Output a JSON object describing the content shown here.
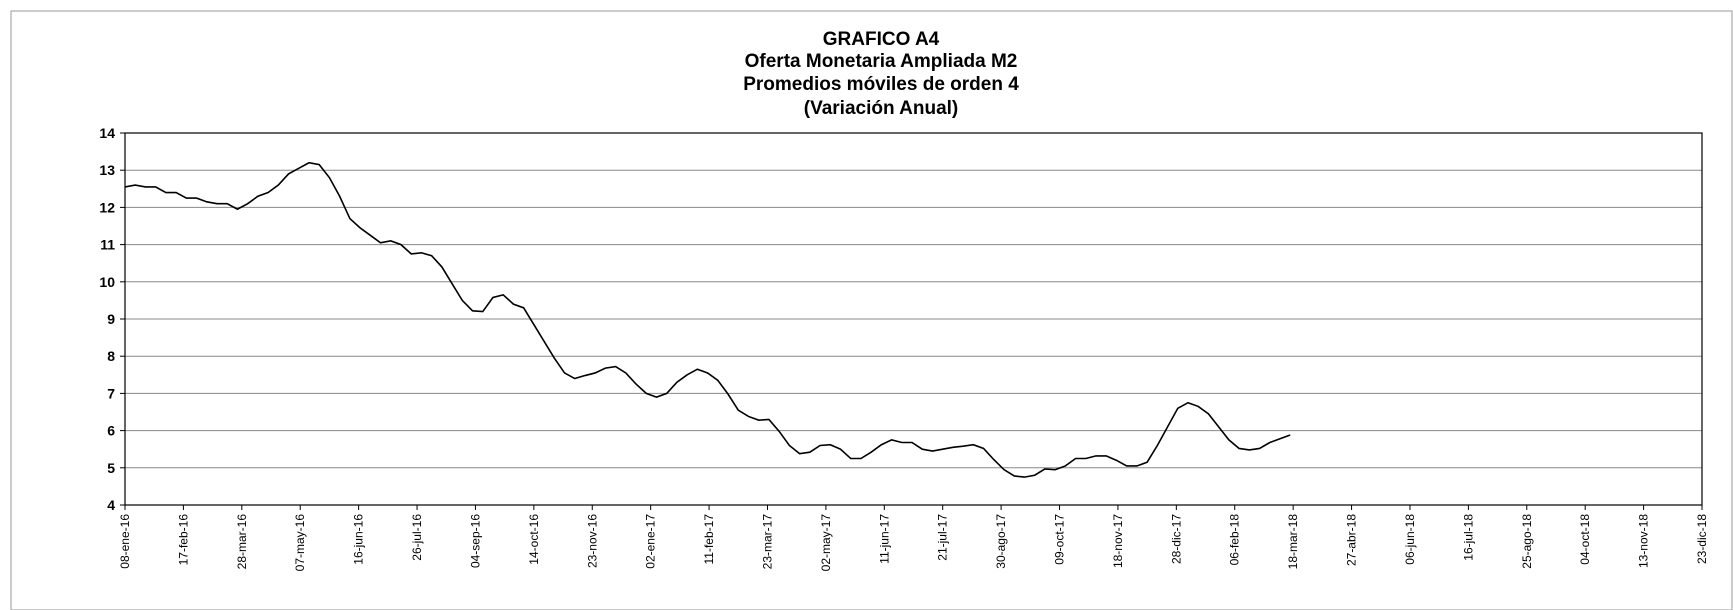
{
  "chart_data": {
    "type": "line",
    "title": [
      "GRAFICO A4",
      "Oferta Monetaria Ampliada M2",
      "Promedios móviles de orden 4",
      "(Variación Anual)"
    ],
    "x": [
      "2016-01-08",
      "2016-01-15",
      "2016-01-22",
      "2016-01-29",
      "2016-02-05",
      "2016-02-12",
      "2016-02-19",
      "2016-02-26",
      "2016-03-04",
      "2016-03-11",
      "2016-03-18",
      "2016-03-25",
      "2016-04-01",
      "2016-04-08",
      "2016-04-15",
      "2016-04-22",
      "2016-04-29",
      "2016-05-06",
      "2016-05-13",
      "2016-05-20",
      "2016-05-27",
      "2016-06-03",
      "2016-06-10",
      "2016-06-17",
      "2016-06-24",
      "2016-07-01",
      "2016-07-08",
      "2016-07-15",
      "2016-07-22",
      "2016-07-29",
      "2016-08-05",
      "2016-08-12",
      "2016-08-19",
      "2016-08-26",
      "2016-09-02",
      "2016-09-09",
      "2016-09-16",
      "2016-09-23",
      "2016-09-30",
      "2016-10-07",
      "2016-10-14",
      "2016-10-21",
      "2016-10-28",
      "2016-11-04",
      "2016-11-11",
      "2016-11-18",
      "2016-11-25",
      "2016-12-02",
      "2016-12-09",
      "2016-12-16",
      "2016-12-23",
      "2016-12-30",
      "2017-01-06",
      "2017-01-13",
      "2017-01-20",
      "2017-01-27",
      "2017-02-03",
      "2017-02-10",
      "2017-02-17",
      "2017-02-24",
      "2017-03-03",
      "2017-03-10",
      "2017-03-17",
      "2017-03-24",
      "2017-03-31",
      "2017-04-07",
      "2017-04-14",
      "2017-04-21",
      "2017-04-28",
      "2017-05-05",
      "2017-05-12",
      "2017-05-19",
      "2017-05-26",
      "2017-06-02",
      "2017-06-09",
      "2017-06-16",
      "2017-06-23",
      "2017-06-30",
      "2017-07-07",
      "2017-07-14",
      "2017-07-21",
      "2017-07-28",
      "2017-08-04",
      "2017-08-11",
      "2017-08-18",
      "2017-08-25",
      "2017-09-01",
      "2017-09-08",
      "2017-09-15",
      "2017-09-22",
      "2017-09-29",
      "2017-10-06",
      "2017-10-13",
      "2017-10-20",
      "2017-10-27",
      "2017-11-03",
      "2017-11-10",
      "2017-11-17",
      "2017-11-24",
      "2017-12-01",
      "2017-12-08",
      "2017-12-15",
      "2017-12-22",
      "2017-12-29",
      "2018-01-05",
      "2018-01-12",
      "2018-01-19",
      "2018-01-26",
      "2018-02-02",
      "2018-02-09",
      "2018-02-16",
      "2018-02-23",
      "2018-03-02",
      "2018-03-09",
      "2018-03-16"
    ],
    "series": [
      {
        "color": "#000000",
        "values": [
          12.55,
          12.6,
          12.55,
          12.55,
          12.4,
          12.4,
          12.25,
          12.25,
          12.15,
          12.1,
          12.1,
          11.95,
          12.1,
          12.3,
          12.4,
          12.6,
          12.9,
          13.05,
          13.2,
          13.15,
          12.8,
          12.3,
          11.7,
          11.45,
          11.25,
          11.05,
          11.1,
          11.0,
          10.75,
          10.78,
          10.7,
          10.4,
          9.95,
          9.5,
          9.22,
          9.2,
          9.58,
          9.65,
          9.4,
          9.3,
          8.85,
          8.4,
          7.95,
          7.55,
          7.4,
          7.48,
          7.55,
          7.68,
          7.72,
          7.55,
          7.25,
          7.0,
          6.9,
          7.0,
          7.3,
          7.5,
          7.65,
          7.55,
          7.35,
          6.98,
          6.55,
          6.38,
          6.28,
          6.3,
          5.98,
          5.6,
          5.38,
          5.42,
          5.6,
          5.62,
          5.5,
          5.25,
          5.25,
          5.42,
          5.62,
          5.75,
          5.68,
          5.68,
          5.5,
          5.45,
          5.5,
          5.55,
          5.58,
          5.62,
          5.52,
          5.22,
          4.95,
          4.78,
          4.75,
          4.8,
          4.97,
          4.95,
          5.05,
          5.25,
          5.25,
          5.32,
          5.32,
          5.2,
          5.05,
          5.05,
          5.15,
          5.6,
          6.1,
          6.6,
          6.75,
          6.65,
          6.45,
          6.1,
          5.75,
          5.52,
          5.48,
          5.52,
          5.68,
          5.78,
          5.88
        ]
      }
    ],
    "xlim": [
      "2016-01-08",
      "2018-12-23"
    ],
    "xticks": [
      {
        "value": "2016-01-08",
        "label": "08-ene-16"
      },
      {
        "value": "2016-02-17",
        "label": "17-feb-16"
      },
      {
        "value": "2016-03-28",
        "label": "28-mar-16"
      },
      {
        "value": "2016-05-07",
        "label": "07-may-16"
      },
      {
        "value": "2016-06-16",
        "label": "16-jun-16"
      },
      {
        "value": "2016-07-26",
        "label": "26-jul-16"
      },
      {
        "value": "2016-09-04",
        "label": "04-sep-16"
      },
      {
        "value": "2016-10-14",
        "label": "14-oct-16"
      },
      {
        "value": "2016-11-23",
        "label": "23-nov-16"
      },
      {
        "value": "2017-01-02",
        "label": "02-ene-17"
      },
      {
        "value": "2017-02-11",
        "label": "11-feb-17"
      },
      {
        "value": "2017-03-23",
        "label": "23-mar-17"
      },
      {
        "value": "2017-05-02",
        "label": "02-may-17"
      },
      {
        "value": "2017-06-11",
        "label": "11-jun-17"
      },
      {
        "value": "2017-07-21",
        "label": "21-jul-17"
      },
      {
        "value": "2017-08-30",
        "label": "30-ago-17"
      },
      {
        "value": "2017-10-09",
        "label": "09-oct-17"
      },
      {
        "value": "2017-11-18",
        "label": "18-nov-17"
      },
      {
        "value": "2017-12-28",
        "label": "28-dic-17"
      },
      {
        "value": "2018-02-06",
        "label": "06-feb-18"
      },
      {
        "value": "2018-03-18",
        "label": "18-mar-18"
      },
      {
        "value": "2018-04-27",
        "label": "27-abr-18"
      },
      {
        "value": "2018-06-06",
        "label": "06-jun-18"
      },
      {
        "value": "2018-07-16",
        "label": "16-jul-18"
      },
      {
        "value": "2018-08-25",
        "label": "25-ago-18"
      },
      {
        "value": "2018-10-04",
        "label": "04-oct-18"
      },
      {
        "value": "2018-11-13",
        "label": "13-nov-18"
      },
      {
        "value": "2018-12-23",
        "label": "23-dic-18"
      }
    ],
    "ylim": [
      4,
      14
    ],
    "yticks": [
      4,
      5,
      6,
      7,
      8,
      9,
      10,
      11,
      12,
      13,
      14
    ],
    "grid": true
  }
}
